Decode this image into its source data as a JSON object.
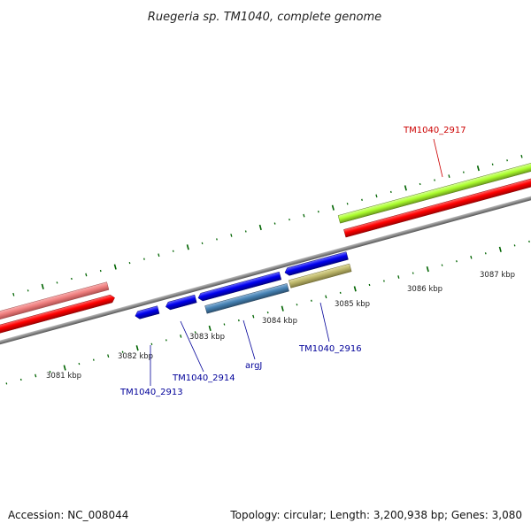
{
  "header": {
    "title": "Ruegeria sp. TM1040, complete genome"
  },
  "footer": {
    "accession": "Accession: NC_008044",
    "summary": "Topology: circular; Length: 3,200,938 bp; Genes: 3,080"
  },
  "scale_labels": [
    "3081 kbp",
    "3082 kbp",
    "3083 kbp",
    "3084 kbp",
    "3085 kbp",
    "3086 kbp",
    "3087 kbp"
  ],
  "gene_labels": [
    {
      "text": "TM1040_2917",
      "color": "#cc0000"
    },
    {
      "text": "TM1040_2913",
      "color": "#000099"
    },
    {
      "text": "TM1040_2914",
      "color": "#000099"
    },
    {
      "text": "argJ",
      "color": "#000099"
    },
    {
      "text": "TM1040_2916",
      "color": "#000099"
    }
  ],
  "colors": {
    "backbone": "#888888",
    "forward_cds": "#ff0000",
    "forward_cds_light": "#f08080",
    "reverse_cds": "#0000ee",
    "reverse_cds_steel": "#4682b4",
    "reverse_cds_khaki": "#bdb76b",
    "highlight_cds": "#adff2f",
    "tick": "#006400"
  }
}
